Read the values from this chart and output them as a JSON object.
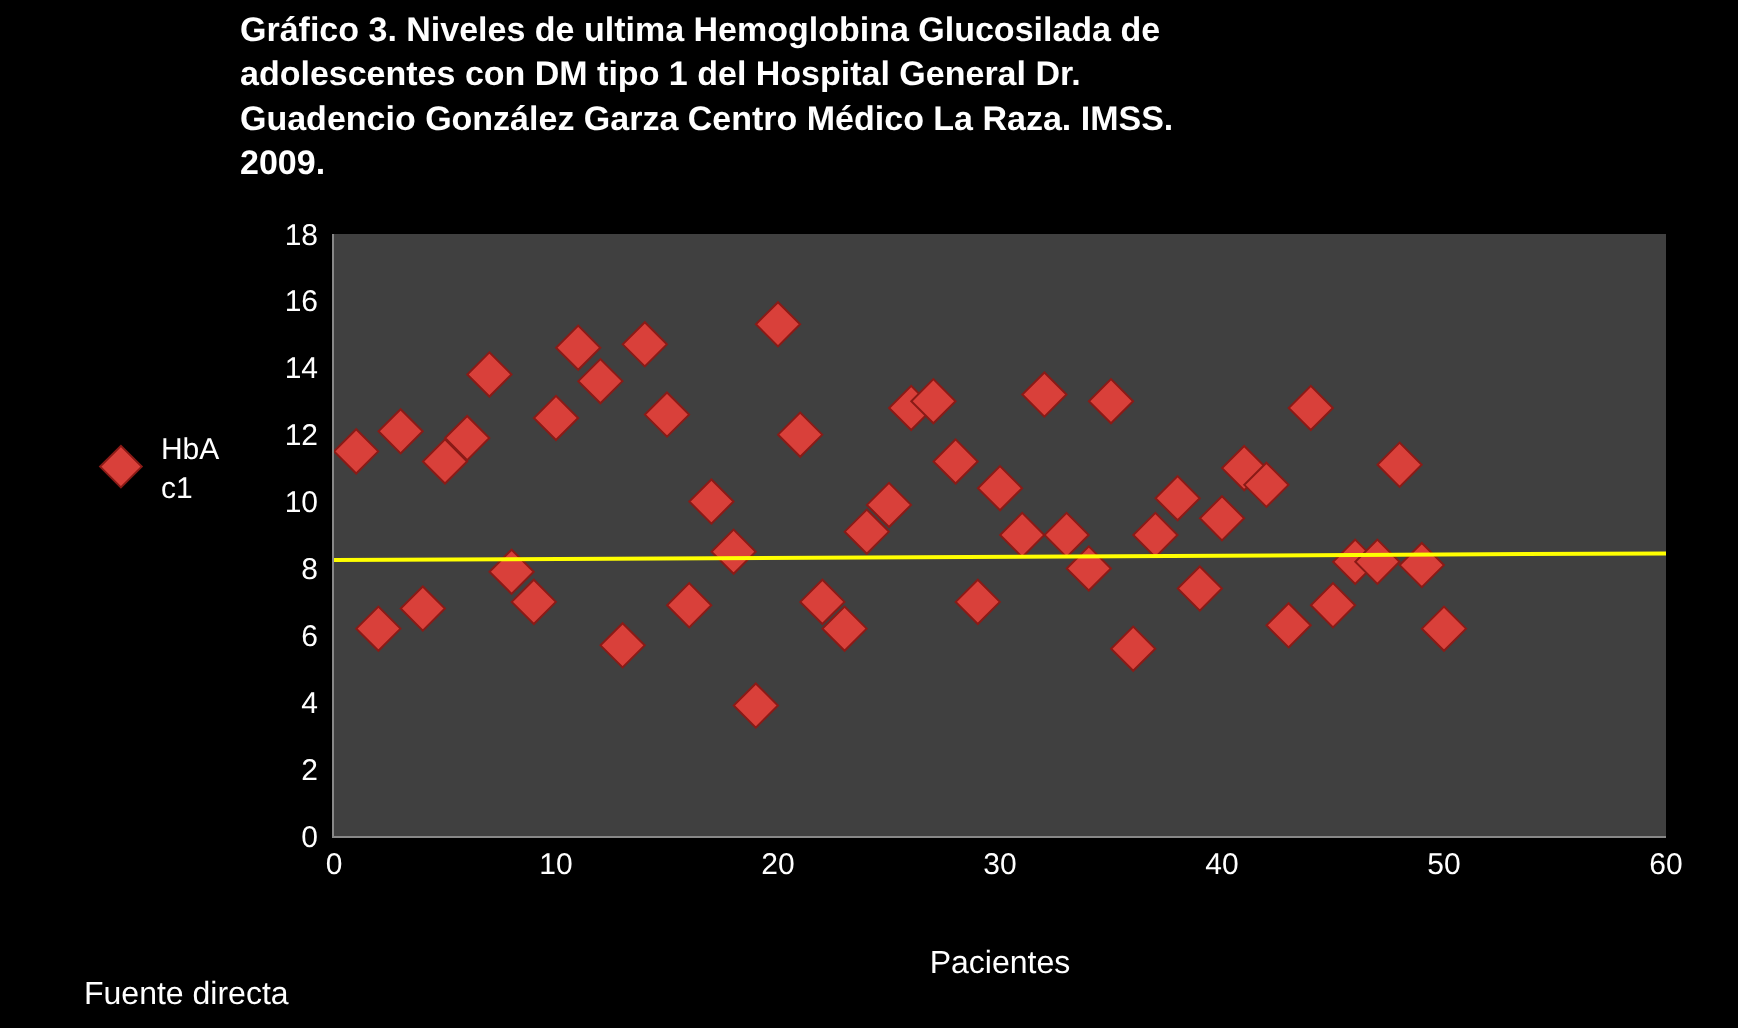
{
  "chart_data": {
    "type": "scatter",
    "title": "Gráfico 3. Niveles de ultima Hemoglobina Glucosilada de\nadolescentes con DM tipo 1 del Hospital General Dr.\nGuadencio González Garza Centro Médico La Raza. IMSS.\n2009.",
    "xlabel": "Pacientes",
    "annotations": [
      "Fuente directa"
    ],
    "x": [
      1,
      2,
      3,
      4,
      5,
      6,
      7,
      8,
      9,
      10,
      11,
      12,
      13,
      14,
      15,
      16,
      17,
      18,
      19,
      20,
      21,
      22,
      23,
      24,
      25,
      26,
      27,
      28,
      29,
      30,
      31,
      32,
      33,
      34,
      35,
      36,
      37,
      38,
      39,
      40,
      41,
      42,
      43,
      44,
      45,
      46,
      47,
      48,
      49,
      50
    ],
    "series": [
      {
        "name": "HbA c1",
        "color": "#d9403a",
        "marker": "diamond",
        "values": [
          11.5,
          6.2,
          12.1,
          6.8,
          11.2,
          11.9,
          13.8,
          7.9,
          7.0,
          12.5,
          14.6,
          13.6,
          5.7,
          14.7,
          12.6,
          6.9,
          10.0,
          8.5,
          3.9,
          15.3,
          12.0,
          7.0,
          6.2,
          9.1,
          9.9,
          12.8,
          13.0,
          11.2,
          7.0,
          10.4,
          9.0,
          13.2,
          9.0,
          8.0,
          13.0,
          5.6,
          9.0,
          10.1,
          7.4,
          9.5,
          11.0,
          10.5,
          6.3,
          12.8,
          6.9,
          8.2,
          8.2,
          11.1,
          8.1,
          6.2
        ]
      },
      {
        "type": "line",
        "color": "#ffff00",
        "marker": "none",
        "x": [
          0,
          60
        ],
        "values": [
          8.25,
          8.45
        ]
      }
    ],
    "xlim": [
      0,
      60
    ],
    "xticks": [
      0,
      10,
      20,
      30,
      40,
      50,
      60
    ],
    "ylim": [
      0,
      18
    ],
    "yticks": [
      0,
      2,
      4,
      6,
      8,
      10,
      12,
      14,
      16,
      18
    ],
    "grid": false,
    "legend": "left"
  }
}
